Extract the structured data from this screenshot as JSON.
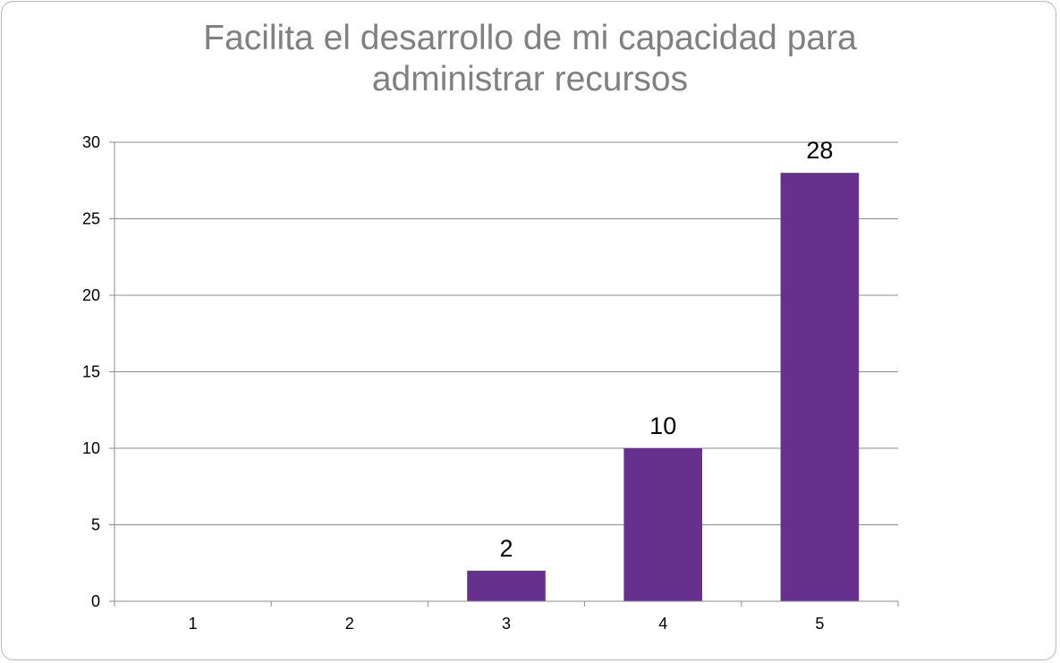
{
  "chart_data": {
    "type": "bar",
    "title_lines": [
      "Facilita el desarrollo de mi capacidad para",
      "administrar recursos"
    ],
    "categories": [
      "1",
      "2",
      "3",
      "4",
      "5"
    ],
    "values": [
      0,
      0,
      2,
      10,
      28
    ],
    "data_labels": [
      "",
      "",
      "2",
      "10",
      "28"
    ],
    "ylim": [
      0,
      30
    ],
    "yticks": [
      "0",
      "5",
      "10",
      "15",
      "20",
      "25",
      "30"
    ],
    "xlabel": "",
    "ylabel": "",
    "grid": true,
    "legend": "none",
    "bar_color": "#66318c",
    "grid_color": "#8c8c8c",
    "title_color": "#808080"
  }
}
